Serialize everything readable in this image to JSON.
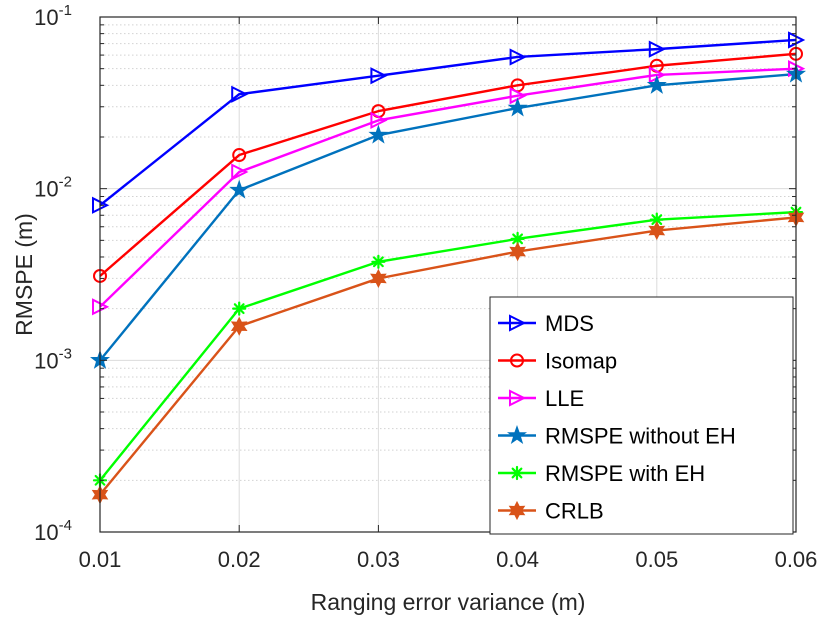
{
  "chart_data": {
    "type": "line",
    "title": "",
    "xlabel": "Ranging error variance (m)",
    "ylabel": "RMSPE (m)",
    "y_scale": "log",
    "x": [
      0.01,
      0.02,
      0.03,
      0.04,
      0.05,
      0.06
    ],
    "x_tick_labels": [
      "0.01",
      "0.02",
      "0.03",
      "0.04",
      "0.05",
      "0.06"
    ],
    "xlim": [
      0.01,
      0.06
    ],
    "ylim": [
      0.0001,
      0.1
    ],
    "y_ticks": [
      {
        "value": 0.1,
        "base": "10",
        "exp": "-1"
      },
      {
        "value": 0.01,
        "base": "10",
        "exp": "-2"
      },
      {
        "value": 0.001,
        "base": "10",
        "exp": "-3"
      },
      {
        "value": 0.0001,
        "base": "10",
        "exp": "-4"
      }
    ],
    "grid": true,
    "legend_position": "bottom-right",
    "series": [
      {
        "name": "MDS",
        "color": "#0000ff",
        "marker": "triangle-right",
        "values": [
          0.008,
          0.0355,
          0.0455,
          0.0585,
          0.065,
          0.0735
        ]
      },
      {
        "name": "Isomap",
        "color": "#ff0000",
        "marker": "circle",
        "values": [
          0.0031,
          0.0157,
          0.0283,
          0.04,
          0.052,
          0.061
        ]
      },
      {
        "name": "LLE",
        "color": "#ff00ff",
        "marker": "triangle-right",
        "values": [
          0.00205,
          0.0125,
          0.025,
          0.0348,
          0.046,
          0.05
        ]
      },
      {
        "name": "RMSPE without EH",
        "color": "#0072bd",
        "marker": "pentagram",
        "values": [
          0.001,
          0.0098,
          0.0205,
          0.0295,
          0.04,
          0.0465
        ]
      },
      {
        "name": "RMSPE with EH",
        "color": "#00ff00",
        "marker": "asterisk",
        "values": [
          0.0002,
          0.002,
          0.00375,
          0.0051,
          0.0066,
          0.0073
        ]
      },
      {
        "name": "CRLB",
        "color": "#d95319",
        "marker": "hexagram",
        "values": [
          0.000165,
          0.00158,
          0.003,
          0.0043,
          0.0057,
          0.0068
        ]
      }
    ]
  }
}
